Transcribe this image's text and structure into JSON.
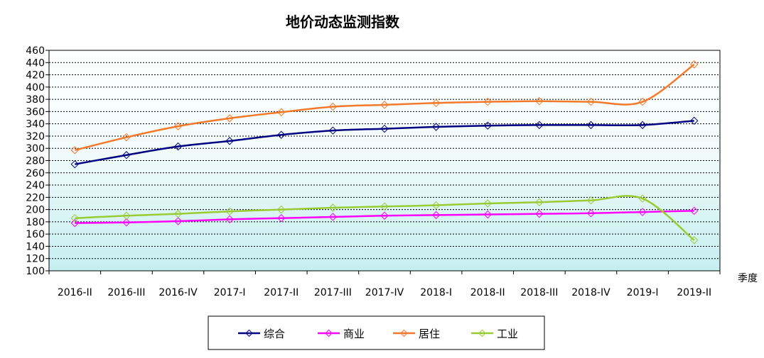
{
  "chart_data": {
    "type": "line",
    "title": "地价动态监测指数",
    "xlabel": "季度",
    "ylabel": "",
    "ylim": [
      100,
      460
    ],
    "ytick_step": 20,
    "grid": true,
    "legend_position": "bottom",
    "categories": [
      "2016-II",
      "2016-III",
      "2016-IV",
      "2017-I",
      "2017-II",
      "2017-III",
      "2017-IV",
      "2018-I",
      "2018-II",
      "2018-III",
      "2018-IV",
      "2019-I",
      "2019-II"
    ],
    "series": [
      {
        "name": "综合",
        "color": "#000080",
        "values": [
          274,
          289,
          303,
          312,
          322,
          329,
          332,
          335,
          337,
          338,
          338,
          338,
          345
        ]
      },
      {
        "name": "商业",
        "color": "#ff00ff",
        "values": [
          178,
          179,
          181,
          184,
          186,
          188,
          190,
          191,
          192,
          193,
          194,
          196,
          198
        ]
      },
      {
        "name": "居住",
        "color": "#f4792a",
        "values": [
          297,
          318,
          336,
          349,
          359,
          368,
          371,
          374,
          376,
          377,
          376,
          376,
          437
        ]
      },
      {
        "name": "工业",
        "color": "#99cc33",
        "values": [
          186,
          190,
          193,
          197,
          200,
          203,
          205,
          207,
          210,
          212,
          215,
          218,
          150
        ]
      }
    ]
  }
}
